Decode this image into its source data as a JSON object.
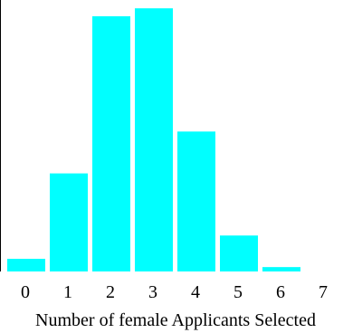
{
  "chart_data": {
    "type": "bar",
    "title": "",
    "xlabel": "Number of female Applicants Selected",
    "ylabel": "",
    "categories": [
      "0",
      "1",
      "2",
      "3",
      "4",
      "5",
      "6",
      "7"
    ],
    "values": [
      0.0075,
      0.0581,
      0.1512,
      0.1559,
      0.0829,
      0.0213,
      0.0026,
      0
    ],
    "ylim": [
      0,
      0.156
    ],
    "bar_color": "#00FFFF",
    "grid": false,
    "legend": "none"
  }
}
